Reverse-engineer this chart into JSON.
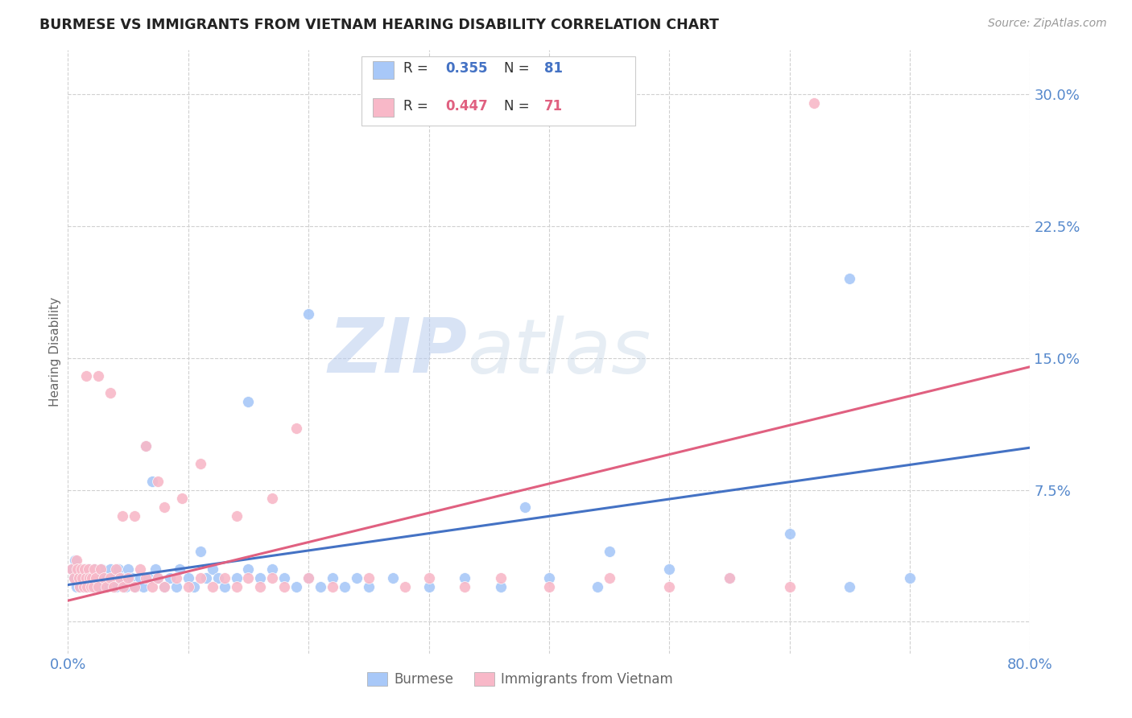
{
  "title": "BURMESE VS IMMIGRANTS FROM VIETNAM HEARING DISABILITY CORRELATION CHART",
  "source": "Source: ZipAtlas.com",
  "ylabel": "Hearing Disability",
  "xlim": [
    0.0,
    0.8
  ],
  "ylim": [
    -0.018,
    0.325
  ],
  "yticks": [
    0.0,
    0.075,
    0.15,
    0.225,
    0.3
  ],
  "grid_color": "#d0d0d0",
  "background_color": "#ffffff",
  "burmese_color": "#a8c8f8",
  "vietnam_color": "#f8b8c8",
  "burmese_line_color": "#4472c4",
  "vietnam_line_color": "#e06080",
  "tick_color": "#5588cc",
  "axis_label_color": "#666666",
  "R_burmese": 0.355,
  "N_burmese": 81,
  "R_vietnam": 0.447,
  "N_vietnam": 71,
  "burmese_line": [
    [
      0.0,
      0.021
    ],
    [
      0.8,
      0.099
    ]
  ],
  "vietnam_line": [
    [
      0.0,
      0.012
    ],
    [
      0.8,
      0.145
    ]
  ],
  "burmese_scatter_x": [
    0.003,
    0.005,
    0.006,
    0.007,
    0.008,
    0.009,
    0.01,
    0.011,
    0.012,
    0.013,
    0.014,
    0.015,
    0.016,
    0.017,
    0.018,
    0.019,
    0.02,
    0.021,
    0.022,
    0.023,
    0.024,
    0.025,
    0.027,
    0.028,
    0.03,
    0.032,
    0.035,
    0.037,
    0.04,
    0.042,
    0.045,
    0.048,
    0.05,
    0.053,
    0.056,
    0.06,
    0.063,
    0.067,
    0.07,
    0.073,
    0.075,
    0.08,
    0.085,
    0.09,
    0.093,
    0.1,
    0.105,
    0.11,
    0.115,
    0.12,
    0.125,
    0.13,
    0.14,
    0.15,
    0.16,
    0.17,
    0.18,
    0.19,
    0.2,
    0.21,
    0.22,
    0.23,
    0.24,
    0.25,
    0.27,
    0.3,
    0.33,
    0.36,
    0.4,
    0.44,
    0.5,
    0.55,
    0.6,
    0.65,
    0.7,
    0.2,
    0.065,
    0.15,
    0.38,
    0.45,
    0.65
  ],
  "burmese_scatter_y": [
    0.03,
    0.025,
    0.035,
    0.02,
    0.03,
    0.025,
    0.02,
    0.03,
    0.025,
    0.02,
    0.03,
    0.025,
    0.02,
    0.03,
    0.025,
    0.02,
    0.025,
    0.02,
    0.03,
    0.025,
    0.02,
    0.025,
    0.02,
    0.03,
    0.025,
    0.02,
    0.03,
    0.025,
    0.02,
    0.03,
    0.025,
    0.02,
    0.03,
    0.025,
    0.02,
    0.025,
    0.02,
    0.025,
    0.08,
    0.03,
    0.025,
    0.02,
    0.025,
    0.02,
    0.03,
    0.025,
    0.02,
    0.04,
    0.025,
    0.03,
    0.025,
    0.02,
    0.025,
    0.03,
    0.025,
    0.03,
    0.025,
    0.02,
    0.025,
    0.02,
    0.025,
    0.02,
    0.025,
    0.02,
    0.025,
    0.02,
    0.025,
    0.02,
    0.025,
    0.02,
    0.03,
    0.025,
    0.05,
    0.02,
    0.025,
    0.175,
    0.1,
    0.125,
    0.065,
    0.04,
    0.195
  ],
  "vietnam_scatter_x": [
    0.003,
    0.005,
    0.007,
    0.008,
    0.009,
    0.01,
    0.011,
    0.012,
    0.013,
    0.014,
    0.015,
    0.016,
    0.017,
    0.018,
    0.019,
    0.02,
    0.021,
    0.022,
    0.023,
    0.025,
    0.027,
    0.03,
    0.032,
    0.035,
    0.038,
    0.04,
    0.043,
    0.046,
    0.05,
    0.055,
    0.06,
    0.065,
    0.07,
    0.075,
    0.08,
    0.09,
    0.1,
    0.11,
    0.12,
    0.13,
    0.14,
    0.15,
    0.16,
    0.17,
    0.18,
    0.2,
    0.22,
    0.25,
    0.28,
    0.3,
    0.33,
    0.36,
    0.4,
    0.45,
    0.5,
    0.55,
    0.6,
    0.015,
    0.025,
    0.035,
    0.045,
    0.055,
    0.065,
    0.075,
    0.095,
    0.11,
    0.14,
    0.17,
    0.19,
    0.62,
    0.08
  ],
  "vietnam_scatter_y": [
    0.03,
    0.025,
    0.035,
    0.03,
    0.025,
    0.02,
    0.03,
    0.025,
    0.02,
    0.03,
    0.025,
    0.02,
    0.03,
    0.025,
    0.02,
    0.025,
    0.02,
    0.03,
    0.025,
    0.02,
    0.03,
    0.025,
    0.02,
    0.025,
    0.02,
    0.03,
    0.025,
    0.02,
    0.025,
    0.02,
    0.03,
    0.025,
    0.02,
    0.025,
    0.02,
    0.025,
    0.02,
    0.025,
    0.02,
    0.025,
    0.02,
    0.025,
    0.02,
    0.025,
    0.02,
    0.025,
    0.02,
    0.025,
    0.02,
    0.025,
    0.02,
    0.025,
    0.02,
    0.025,
    0.02,
    0.025,
    0.02,
    0.14,
    0.14,
    0.13,
    0.06,
    0.06,
    0.1,
    0.08,
    0.07,
    0.09,
    0.06,
    0.07,
    0.11,
    0.295,
    0.065
  ]
}
